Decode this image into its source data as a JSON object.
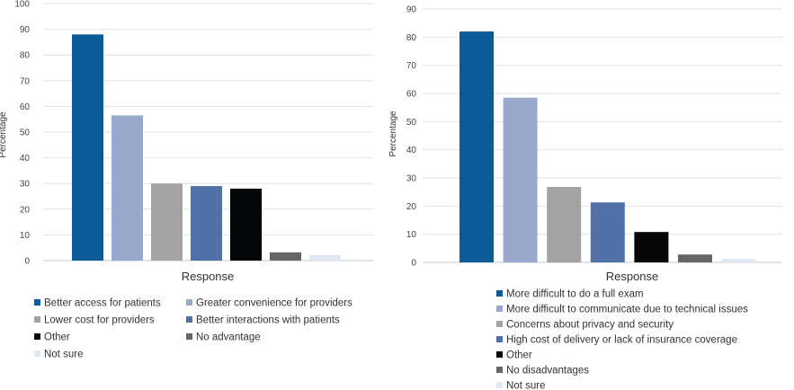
{
  "chart_data": [
    {
      "type": "bar",
      "title": "",
      "xlabel": "Response",
      "ylabel": "Percentage",
      "ylim": [
        0,
        100
      ],
      "yticks": [
        "0",
        "10",
        "20",
        "30",
        "40",
        "50",
        "60",
        "70",
        "80",
        "90",
        "100"
      ],
      "grid": true,
      "legend_position": "bottom",
      "categories": [
        "Better access for patients",
        "Greater convenience for providers",
        "Lower cost for providers",
        "Better interactions with patients",
        "Other",
        "No advantage",
        "Not sure"
      ],
      "values": [
        88,
        56.5,
        30,
        29,
        28,
        3.2,
        2.2
      ],
      "colors": [
        "#0c5a96",
        "#9aa8cb",
        "#a3a3a3",
        "#4f71a8",
        "#050709",
        "#666666",
        "#dfe8f2"
      ]
    },
    {
      "type": "bar",
      "title": "",
      "xlabel": "Response",
      "ylabel": "Percentage",
      "ylim": [
        0,
        90
      ],
      "yticks": [
        "0",
        "10",
        "20",
        "30",
        "40",
        "50",
        "60",
        "70",
        "80",
        "90"
      ],
      "grid": true,
      "legend_position": "bottom",
      "categories": [
        "More difficult to do a full exam",
        "More difficult to communicate due to technical issues",
        "Concerns about privacy and security",
        "High cost of delivery or lack of insurance coverage",
        "Other",
        "No disadvantages",
        "Not sure"
      ],
      "values": [
        82,
        58.5,
        26.8,
        21.3,
        10.8,
        2.8,
        1.2
      ],
      "colors": [
        "#0c5a96",
        "#9aa8cb",
        "#a3a3a3",
        "#4f71a8",
        "#050709",
        "#666666",
        "#dfe8f2"
      ]
    }
  ]
}
